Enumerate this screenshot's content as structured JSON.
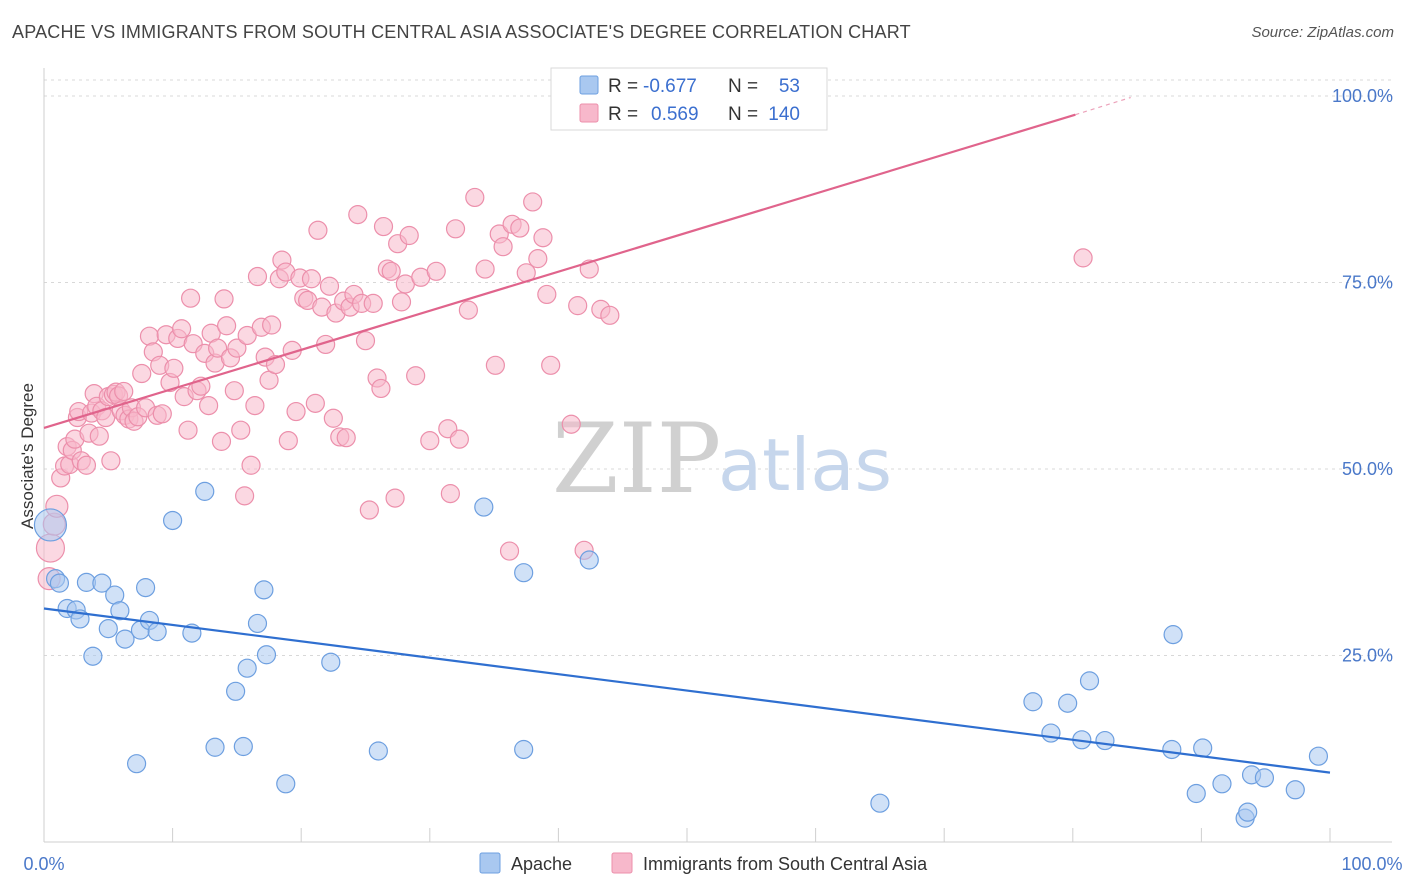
{
  "title": "APACHE VS IMMIGRANTS FROM SOUTH CENTRAL ASIA ASSOCIATE'S DEGREE CORRELATION CHART",
  "source": "Source: ZipAtlas.com",
  "watermark": {
    "zip": "ZIP",
    "atlas": "atlas"
  },
  "legend": {
    "r_label": "R =",
    "n_label": "N =",
    "rows": [
      {
        "r": "-0.677",
        "n": "53",
        "color": "#a9c8f0",
        "stroke": "#6d9fe0"
      },
      {
        "r": "0.569",
        "n": "140",
        "color": "#f7b8cb",
        "stroke": "#ec8fab"
      }
    ]
  },
  "bottom_legend": [
    "Apache",
    "Immigrants from South Central Asia"
  ],
  "chart_data": {
    "type": "scatter",
    "title": "APACHE VS IMMIGRANTS FROM SOUTH CENTRAL ASIA ASSOCIATE'S DEGREE CORRELATION CHART",
    "xlabel": "",
    "ylabel": "Associate's Degree",
    "xlim": [
      0,
      100
    ],
    "ylim": [
      0,
      102
    ],
    "x_ticks": [
      "0.0%",
      "100.0%"
    ],
    "y_ticks": [
      {
        "value": 25,
        "label": "25.0%"
      },
      {
        "value": 50,
        "label": "50.0%"
      },
      {
        "value": 75,
        "label": "75.0%"
      },
      {
        "value": 100,
        "label": "100.0%"
      }
    ],
    "grid": true,
    "legend_position": "top-center",
    "series": [
      {
        "name": "Apache",
        "color": "#a9c8f0",
        "stroke": "#6d9fe0",
        "line_color": "#2f6fd0",
        "trend": {
          "x0": 0,
          "y0": 31.3,
          "x1": 100,
          "y1": 9.3
        },
        "points": [
          [
            0.5,
            42.5,
            16
          ],
          [
            0.9,
            35.3,
            9
          ],
          [
            1.2,
            34.7,
            9
          ],
          [
            1.8,
            31.3,
            9
          ],
          [
            2.5,
            31.1,
            9
          ],
          [
            2.8,
            29.9,
            9
          ],
          [
            3.3,
            34.8,
            9
          ],
          [
            3.8,
            24.9,
            9
          ],
          [
            4.5,
            34.7,
            9
          ],
          [
            5.0,
            28.6,
            9
          ],
          [
            5.5,
            33.1,
            9
          ],
          [
            5.9,
            31.0,
            9
          ],
          [
            6.3,
            27.2,
            9
          ],
          [
            7.2,
            10.5,
            9
          ],
          [
            7.5,
            28.4,
            9
          ],
          [
            7.9,
            34.1,
            9
          ],
          [
            8.2,
            29.7,
            9
          ],
          [
            8.8,
            28.2,
            9
          ],
          [
            10.0,
            43.1,
            9
          ],
          [
            11.5,
            28.0,
            9
          ],
          [
            12.5,
            47.0,
            9
          ],
          [
            13.3,
            12.7,
            9
          ],
          [
            14.9,
            20.2,
            9
          ],
          [
            15.5,
            12.8,
            9
          ],
          [
            15.8,
            23.3,
            9
          ],
          [
            16.6,
            29.3,
            9
          ],
          [
            17.1,
            33.8,
            9
          ],
          [
            17.3,
            25.1,
            9
          ],
          [
            18.8,
            7.8,
            9
          ],
          [
            22.3,
            24.1,
            9
          ],
          [
            26.0,
            12.2,
            9
          ],
          [
            34.2,
            44.9,
            9
          ],
          [
            37.3,
            12.4,
            9
          ],
          [
            37.3,
            36.1,
            9
          ],
          [
            42.4,
            37.8,
            9
          ],
          [
            65.0,
            5.2,
            9
          ],
          [
            76.9,
            18.8,
            9
          ],
          [
            78.3,
            14.6,
            9
          ],
          [
            79.6,
            18.6,
            9
          ],
          [
            80.7,
            13.7,
            9
          ],
          [
            81.3,
            21.6,
            9
          ],
          [
            82.5,
            13.6,
            9
          ],
          [
            87.7,
            12.4,
            9
          ],
          [
            87.8,
            27.8,
            9
          ],
          [
            89.6,
            6.5,
            9
          ],
          [
            90.1,
            12.6,
            9
          ],
          [
            91.6,
            7.8,
            9
          ],
          [
            93.4,
            3.2,
            9
          ],
          [
            93.6,
            4.0,
            9
          ],
          [
            93.9,
            9.0,
            9
          ],
          [
            94.9,
            8.6,
            9
          ],
          [
            97.3,
            7.0,
            9
          ],
          [
            99.1,
            11.5,
            9
          ]
        ]
      },
      {
        "name": "Immigrants from South Central Asia",
        "color": "#f7b8cb",
        "stroke": "#ec8fab",
        "line_color": "#e0648c",
        "trend": {
          "x0": 0,
          "y0": 55.5,
          "x1": 80.2,
          "y1": 97.5
        },
        "trend_dashed": {
          "x0": 80.2,
          "y0": 97.5,
          "x1": 84.5,
          "y1": 99.8
        },
        "points": [
          [
            0.4,
            35.3,
            11
          ],
          [
            0.5,
            39.4,
            14
          ],
          [
            0.8,
            42.6,
            11
          ],
          [
            1.0,
            45.0,
            11
          ],
          [
            1.3,
            48.8,
            9
          ],
          [
            1.6,
            50.4,
            9
          ],
          [
            1.8,
            53.0,
            9
          ],
          [
            2.0,
            50.6,
            9
          ],
          [
            2.2,
            52.5,
            9
          ],
          [
            2.4,
            54.0,
            9
          ],
          [
            2.6,
            56.9,
            9
          ],
          [
            2.7,
            57.7,
            9
          ],
          [
            2.9,
            51.1,
            9
          ],
          [
            3.3,
            50.5,
            9
          ],
          [
            3.5,
            54.8,
            9
          ],
          [
            3.7,
            57.5,
            9
          ],
          [
            3.9,
            60.1,
            9
          ],
          [
            4.1,
            58.4,
            9
          ],
          [
            4.3,
            54.4,
            9
          ],
          [
            4.5,
            57.8,
            9
          ],
          [
            4.8,
            56.9,
            9
          ],
          [
            5.0,
            59.7,
            9
          ],
          [
            5.2,
            51.1,
            9
          ],
          [
            5.4,
            60.0,
            9
          ],
          [
            5.6,
            60.3,
            9
          ],
          [
            5.8,
            59.8,
            9
          ],
          [
            6.0,
            57.8,
            9
          ],
          [
            6.2,
            60.4,
            9
          ],
          [
            6.3,
            57.2,
            9
          ],
          [
            6.6,
            56.7,
            9
          ],
          [
            6.8,
            58.2,
            9
          ],
          [
            7.0,
            56.4,
            9
          ],
          [
            7.3,
            57.0,
            9
          ],
          [
            7.6,
            62.8,
            9
          ],
          [
            7.9,
            58.2,
            9
          ],
          [
            8.2,
            67.8,
            9
          ],
          [
            8.5,
            65.7,
            9
          ],
          [
            8.8,
            57.2,
            9
          ],
          [
            9.0,
            63.9,
            9
          ],
          [
            9.2,
            57.4,
            9
          ],
          [
            9.5,
            68.0,
            9
          ],
          [
            9.8,
            61.6,
            9
          ],
          [
            10.1,
            63.5,
            9
          ],
          [
            10.4,
            67.5,
            9
          ],
          [
            10.7,
            68.8,
            9
          ],
          [
            10.9,
            59.7,
            9
          ],
          [
            11.2,
            55.2,
            9
          ],
          [
            11.4,
            72.9,
            9
          ],
          [
            11.6,
            66.8,
            9
          ],
          [
            11.9,
            60.5,
            9
          ],
          [
            12.2,
            61.1,
            9
          ],
          [
            12.5,
            65.5,
            9
          ],
          [
            12.8,
            58.5,
            9
          ],
          [
            13.0,
            68.2,
            9
          ],
          [
            13.3,
            64.2,
            9
          ],
          [
            13.5,
            66.2,
            9
          ],
          [
            13.8,
            53.7,
            9
          ],
          [
            14.0,
            72.8,
            9
          ],
          [
            14.2,
            69.2,
            9
          ],
          [
            14.5,
            64.9,
            9
          ],
          [
            14.8,
            60.5,
            9
          ],
          [
            15.0,
            66.2,
            9
          ],
          [
            15.3,
            55.2,
            9
          ],
          [
            15.6,
            46.4,
            9
          ],
          [
            15.8,
            67.9,
            9
          ],
          [
            16.1,
            50.5,
            9
          ],
          [
            16.4,
            58.5,
            9
          ],
          [
            16.6,
            75.8,
            9
          ],
          [
            16.9,
            69.0,
            9
          ],
          [
            17.2,
            65.0,
            9
          ],
          [
            17.5,
            61.9,
            9
          ],
          [
            17.7,
            69.3,
            9
          ],
          [
            18.0,
            64.0,
            9
          ],
          [
            18.3,
            75.5,
            9
          ],
          [
            18.5,
            78.0,
            9
          ],
          [
            18.8,
            76.4,
            9
          ],
          [
            19.0,
            53.8,
            9
          ],
          [
            19.3,
            65.9,
            9
          ],
          [
            19.6,
            57.7,
            9
          ],
          [
            19.9,
            75.6,
            9
          ],
          [
            20.2,
            72.9,
            9
          ],
          [
            20.5,
            72.6,
            9
          ],
          [
            20.8,
            75.5,
            9
          ],
          [
            21.1,
            58.8,
            9
          ],
          [
            21.3,
            82.0,
            9
          ],
          [
            21.6,
            71.7,
            9
          ],
          [
            21.9,
            66.7,
            9
          ],
          [
            22.2,
            74.5,
            9
          ],
          [
            22.5,
            56.8,
            9
          ],
          [
            22.7,
            70.9,
            9
          ],
          [
            23.0,
            54.3,
            9
          ],
          [
            23.3,
            72.5,
            9
          ],
          [
            23.5,
            54.2,
            9
          ],
          [
            23.8,
            71.7,
            9
          ],
          [
            24.1,
            73.4,
            9
          ],
          [
            24.4,
            84.1,
            9
          ],
          [
            24.7,
            72.2,
            9
          ],
          [
            25.0,
            67.2,
            9
          ],
          [
            25.3,
            44.5,
            9
          ],
          [
            25.6,
            72.2,
            9
          ],
          [
            25.9,
            62.2,
            9
          ],
          [
            26.2,
            60.8,
            9
          ],
          [
            26.4,
            82.5,
            9
          ],
          [
            26.7,
            76.8,
            9
          ],
          [
            27.0,
            76.5,
            9
          ],
          [
            27.3,
            46.1,
            9
          ],
          [
            27.5,
            80.2,
            9
          ],
          [
            27.8,
            72.4,
            9
          ],
          [
            28.1,
            74.8,
            9
          ],
          [
            28.4,
            81.3,
            9
          ],
          [
            29.3,
            75.7,
            9
          ],
          [
            30.0,
            53.8,
            9
          ],
          [
            30.5,
            76.5,
            9
          ],
          [
            31.4,
            55.4,
            9
          ],
          [
            31.6,
            46.7,
            9
          ],
          [
            32.0,
            82.2,
            9
          ],
          [
            32.3,
            54.0,
            9
          ],
          [
            33.0,
            71.3,
            9
          ],
          [
            33.5,
            86.4,
            9
          ],
          [
            34.3,
            76.8,
            9
          ],
          [
            35.1,
            63.9,
            9
          ],
          [
            35.4,
            81.5,
            9
          ],
          [
            35.7,
            79.8,
            9
          ],
          [
            36.4,
            82.8,
            9
          ],
          [
            37.0,
            82.3,
            9
          ],
          [
            37.5,
            76.3,
            9
          ],
          [
            38.0,
            85.8,
            9
          ],
          [
            38.4,
            78.2,
            9
          ],
          [
            38.8,
            81.0,
            9
          ],
          [
            39.1,
            73.4,
            9
          ],
          [
            39.4,
            63.9,
            9
          ],
          [
            41.0,
            56.0,
            9
          ],
          [
            41.5,
            71.9,
            9
          ],
          [
            42.0,
            39.1,
            9
          ],
          [
            42.4,
            76.8,
            9
          ],
          [
            43.3,
            71.4,
            9
          ],
          [
            44.0,
            70.6,
            9
          ],
          [
            80.8,
            78.3,
            9
          ],
          [
            36.2,
            39.0,
            9
          ],
          [
            28.9,
            62.5,
            9
          ]
        ]
      }
    ]
  }
}
